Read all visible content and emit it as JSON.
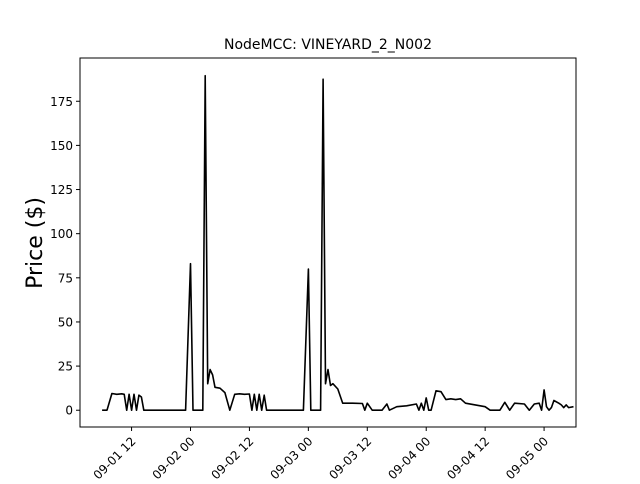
{
  "chart_data": {
    "type": "line",
    "title": "NodeMCC: VINEYARD_2_N002",
    "xlabel": "",
    "ylabel": "Price ($)",
    "xlim": [
      "2024-09-01 01:30",
      "2024-09-05 06:30"
    ],
    "ylim": [
      -9.5,
      199.5
    ],
    "y_ticks": [
      0,
      25,
      50,
      75,
      100,
      125,
      150,
      175
    ],
    "x_ticks": [
      {
        "at": "2024-09-01 12:00",
        "label": "09-01 12"
      },
      {
        "at": "2024-09-02 00:00",
        "label": "09-02 00"
      },
      {
        "at": "2024-09-02 12:00",
        "label": "09-02 12"
      },
      {
        "at": "2024-09-03 00:00",
        "label": "09-03 00"
      },
      {
        "at": "2024-09-03 12:00",
        "label": "09-03 12"
      },
      {
        "at": "2024-09-04 00:00",
        "label": "09-04 00"
      },
      {
        "at": "2024-09-04 12:00",
        "label": "09-04 12"
      },
      {
        "at": "2024-09-05 00:00",
        "label": "09-05 00"
      }
    ],
    "grid": false,
    "series": [
      {
        "color": "#000000",
        "points": [
          [
            "2024-09-01 06:00",
            0
          ],
          [
            "2024-09-01 07:00",
            0
          ],
          [
            "2024-09-01 08:00",
            9.5
          ],
          [
            "2024-09-01 09:00",
            9.0
          ],
          [
            "2024-09-01 10:00",
            9.3
          ],
          [
            "2024-09-01 10:30",
            9.0
          ],
          [
            "2024-09-01 11:00",
            0
          ],
          [
            "2024-09-01 11:30",
            9.0
          ],
          [
            "2024-09-01 12:00",
            0
          ],
          [
            "2024-09-01 12:30",
            9.0
          ],
          [
            "2024-09-01 13:00",
            0
          ],
          [
            "2024-09-01 13:30",
            8.5
          ],
          [
            "2024-09-01 14:00",
            7.5
          ],
          [
            "2024-09-01 14:30",
            0
          ],
          [
            "2024-09-01 16:00",
            0
          ],
          [
            "2024-09-01 20:00",
            0
          ],
          [
            "2024-09-01 23:00",
            0
          ],
          [
            "2024-09-02 00:00",
            83.0
          ],
          [
            "2024-09-02 00:30",
            0
          ],
          [
            "2024-09-02 02:30",
            0
          ],
          [
            "2024-09-02 03:00",
            189.5
          ],
          [
            "2024-09-02 03:30",
            15.0
          ],
          [
            "2024-09-02 04:00",
            23.0
          ],
          [
            "2024-09-02 04:30",
            20.0
          ],
          [
            "2024-09-02 05:00",
            13.0
          ],
          [
            "2024-09-02 06:00",
            12.5
          ],
          [
            "2024-09-02 07:00",
            10.0
          ],
          [
            "2024-09-02 08:00",
            0
          ],
          [
            "2024-09-02 09:00",
            9.0
          ],
          [
            "2024-09-02 10:00",
            9.3
          ],
          [
            "2024-09-02 11:00",
            9.0
          ],
          [
            "2024-09-02 12:00",
            9.2
          ],
          [
            "2024-09-02 12:30",
            0
          ],
          [
            "2024-09-02 13:00",
            9.0
          ],
          [
            "2024-09-02 13:30",
            0
          ],
          [
            "2024-09-02 14:00",
            9.0
          ],
          [
            "2024-09-02 14:30",
            0
          ],
          [
            "2024-09-02 15:00",
            8.5
          ],
          [
            "2024-09-02 15:30",
            0
          ],
          [
            "2024-09-02 18:00",
            0
          ],
          [
            "2024-09-02 23:00",
            0
          ],
          [
            "2024-09-03 00:00",
            80.0
          ],
          [
            "2024-09-03 00:30",
            0
          ],
          [
            "2024-09-03 02:30",
            0
          ],
          [
            "2024-09-03 03:00",
            187.5
          ],
          [
            "2024-09-03 03:30",
            15.0
          ],
          [
            "2024-09-03 04:00",
            23.0
          ],
          [
            "2024-09-03 04:30",
            14.0
          ],
          [
            "2024-09-03 05:00",
            15.0
          ],
          [
            "2024-09-03 06:00",
            12.0
          ],
          [
            "2024-09-03 07:00",
            4.0
          ],
          [
            "2024-09-03 09:00",
            4.0
          ],
          [
            "2024-09-03 11:00",
            3.8
          ],
          [
            "2024-09-03 11:30",
            0
          ],
          [
            "2024-09-03 12:00",
            4.0
          ],
          [
            "2024-09-03 13:00",
            0
          ],
          [
            "2024-09-03 15:00",
            0
          ],
          [
            "2024-09-03 16:00",
            3.5
          ],
          [
            "2024-09-03 16:30",
            0
          ],
          [
            "2024-09-03 18:00",
            2.0
          ],
          [
            "2024-09-03 20:00",
            2.5
          ],
          [
            "2024-09-03 22:00",
            3.5
          ],
          [
            "2024-09-03 22:30",
            0
          ],
          [
            "2024-09-03 23:00",
            4.0
          ],
          [
            "2024-09-03 23:30",
            0
          ],
          [
            "2024-09-04 00:00",
            7.0
          ],
          [
            "2024-09-04 00:30",
            0
          ],
          [
            "2024-09-04 01:00",
            0
          ],
          [
            "2024-09-04 02:00",
            11.0
          ],
          [
            "2024-09-04 03:00",
            10.5
          ],
          [
            "2024-09-04 04:00",
            6.0
          ],
          [
            "2024-09-04 05:00",
            6.5
          ],
          [
            "2024-09-04 06:00",
            6.0
          ],
          [
            "2024-09-04 07:00",
            6.5
          ],
          [
            "2024-09-04 08:00",
            4.0
          ],
          [
            "2024-09-04 10:00",
            3.0
          ],
          [
            "2024-09-04 12:00",
            2.0
          ],
          [
            "2024-09-04 13:00",
            0
          ],
          [
            "2024-09-04 15:00",
            0
          ],
          [
            "2024-09-04 16:00",
            4.5
          ],
          [
            "2024-09-04 17:00",
            0
          ],
          [
            "2024-09-04 18:00",
            4.0
          ],
          [
            "2024-09-04 20:00",
            3.5
          ],
          [
            "2024-09-04 21:00",
            0
          ],
          [
            "2024-09-04 22:00",
            3.5
          ],
          [
            "2024-09-04 23:00",
            4.0
          ],
          [
            "2024-09-04 23:30",
            0
          ],
          [
            "2024-09-05 00:00",
            11.5
          ],
          [
            "2024-09-05 00:30",
            2.0
          ],
          [
            "2024-09-05 01:00",
            0
          ],
          [
            "2024-09-05 01:30",
            1.5
          ],
          [
            "2024-09-05 02:00",
            5.5
          ],
          [
            "2024-09-05 03:00",
            4.0
          ],
          [
            "2024-09-05 03:30",
            3.0
          ],
          [
            "2024-09-05 04:00",
            1.5
          ],
          [
            "2024-09-05 04:30",
            3.0
          ],
          [
            "2024-09-05 05:00",
            1.5
          ],
          [
            "2024-09-05 06:00",
            2.0
          ]
        ]
      }
    ]
  }
}
